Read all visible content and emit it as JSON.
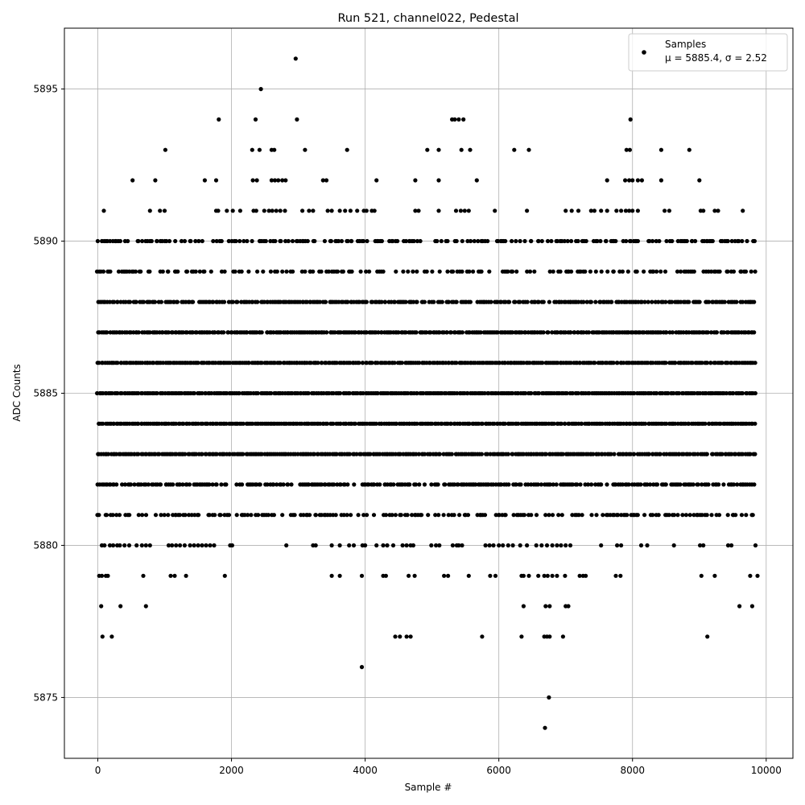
{
  "chart_data": {
    "type": "scatter",
    "title": "Run 521, channel022, Pedestal",
    "xlabel": "Sample #",
    "ylabel": "ADC Counts",
    "xlim": [
      -500,
      10400
    ],
    "ylim": [
      5873,
      5897
    ],
    "xticks": [
      0,
      2000,
      4000,
      6000,
      8000,
      10000
    ],
    "xtick_labels": [
      "0",
      "2000",
      "4000",
      "6000",
      "8000",
      "10000"
    ],
    "yticks": [
      5875,
      5880,
      5885,
      5890,
      5895
    ],
    "ytick_labels": [
      "5875",
      "5880",
      "5885",
      "5890",
      "5895"
    ],
    "grid": true,
    "legend_position": "top-right",
    "series": [
      {
        "name": "Samples",
        "legend_stats": "μ = 5885.4, σ = 2.52",
        "color": "#000000",
        "marker": "circle",
        "band_x_range": [
          0,
          9850
        ],
        "band_levels": [
          {
            "y": 5877,
            "x": [
              70,
              210,
              4450,
              4520,
              4620,
              4680,
              5750,
              6340,
              6680,
              6720,
              6760,
              6960,
              9120
            ]
          },
          {
            "y": 5878,
            "x": [
              50,
              340,
              720,
              6370,
              6700,
              6760,
              7000,
              7040,
              9600,
              9790
            ]
          },
          {
            "y": 5879,
            "x": [
              20,
              60,
              120,
              150,
              680,
              1090,
              1150,
              1320,
              1900,
              3500,
              3620,
              3950,
              4270,
              4310,
              4650,
              4740,
              5180,
              5240,
              5550,
              5870,
              5950,
              6340,
              6370,
              6450,
              6590,
              6680,
              6730,
              6800,
              6870,
              6990,
              7210,
              7260,
              7300,
              7750,
              7820,
              9030,
              9230,
              9760,
              9870
            ]
          },
          {
            "y": 5880,
            "x": [
              60,
              100,
              180,
              230,
              290,
              330,
              400,
              470,
              580,
              660,
              720,
              780,
              1060,
              1110,
              1170,
              1230,
              1300,
              1380,
              1440,
              1500,
              1560,
              1620,
              1680,
              1740,
              1980,
              2010,
              2820,
              3220,
              3260,
              3500,
              3620,
              3760,
              3830,
              3960,
              4000,
              4170,
              4270,
              4330,
              4420,
              4560,
              4620,
              4680,
              4720,
              4990,
              5060,
              5110,
              5310,
              5370,
              5400,
              5450,
              5800,
              5860,
              5920,
              6000,
              6060,
              6140,
              6210,
              6320,
              6420,
              6560,
              6640,
              6720,
              6800,
              6870,
              6930,
              7000,
              7070,
              7530,
              7770,
              7830,
              8130,
              8220,
              8620,
              9010,
              9060,
              9430,
              9480,
              9840
            ]
          },
          {
            "y": 5881,
            "band": true,
            "density": 0.55,
            "seed": 11
          },
          {
            "y": 5882,
            "band": true,
            "density": 0.75,
            "seed": 23
          },
          {
            "y": 5883,
            "band": true,
            "density": 0.95,
            "seed": 37
          },
          {
            "y": 5884,
            "band": true,
            "density": 1.0,
            "seed": 41
          },
          {
            "y": 5885,
            "band": true,
            "density": 1.0,
            "seed": 53
          },
          {
            "y": 5886,
            "band": true,
            "density": 1.0,
            "seed": 67
          },
          {
            "y": 5887,
            "band": true,
            "density": 0.95,
            "seed": 71
          },
          {
            "y": 5888,
            "band": true,
            "density": 0.85,
            "seed": 83
          },
          {
            "y": 5889,
            "band": true,
            "density": 0.45,
            "seed": 97
          },
          {
            "y": 5890,
            "band": true,
            "density": 0.55,
            "seed": 101
          },
          {
            "y": 5891,
            "x": [
              90,
              780,
              930,
              1000,
              1770,
              1800,
              1930,
              2020,
              2130,
              2330,
              2370,
              2490,
              2560,
              2610,
              2670,
              2730,
              2800,
              3060,
              3160,
              3220,
              3440,
              3500,
              3620,
              3700,
              3780,
              3880,
              3980,
              4020,
              4100,
              4140,
              4750,
              4800,
              5100,
              5360,
              5430,
              5490,
              5550,
              5940,
              6420,
              7000,
              7090,
              7190,
              7380,
              7430,
              7530,
              7620,
              7760,
              7830,
              7900,
              7950,
              8000,
              8080,
              8480,
              8550,
              9020,
              9060,
              9230,
              9280,
              9650
            ]
          },
          {
            "y": 5892,
            "x": [
              520,
              860,
              1600,
              1770,
              2320,
              2380,
              2600,
              2650,
              2700,
              2760,
              2810,
              3370,
              3420,
              4170,
              4750,
              5100,
              5670,
              7620,
              7890,
              7950,
              8000,
              8080,
              8140,
              8430,
              9000
            ]
          },
          {
            "y": 5893,
            "x": [
              1010,
              2310,
              2420,
              2600,
              2640,
              3100,
              3730,
              4930,
              5100,
              5440,
              5570,
              6230,
              6450,
              7910,
              7960,
              8430,
              8850
            ]
          },
          {
            "y": 5894,
            "x": [
              1810,
              2360,
              2980,
              5300,
              5340,
              5400,
              5470,
              7970
            ]
          },
          {
            "y": 5895,
            "x": [
              2440
            ]
          },
          {
            "y": 5896,
            "x": [
              2960
            ]
          },
          {
            "y": 5876,
            "x": [
              3950
            ]
          },
          {
            "y": 5875,
            "x": [
              6750
            ]
          },
          {
            "y": 5874,
            "x": [
              6690
            ]
          }
        ]
      }
    ]
  }
}
